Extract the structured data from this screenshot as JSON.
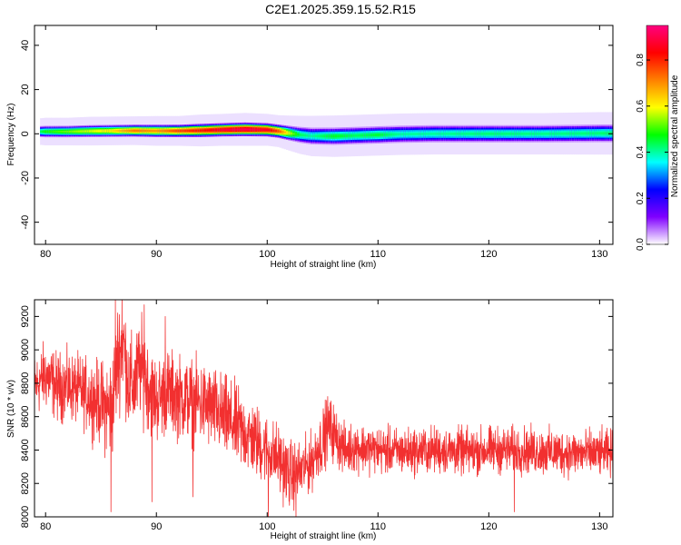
{
  "title": "C2E1.2025.359.15.52.R15",
  "chart_data": [
    {
      "type": "heatmap",
      "xlabel": "Height of straight line (km)",
      "ylabel": "Frequency (Hz)",
      "xlim": [
        79,
        131.2
      ],
      "ylim": [
        -50,
        49
      ],
      "xticks": [
        80,
        90,
        100,
        110,
        120,
        130
      ],
      "yticks": [
        -40,
        -20,
        0,
        20,
        40
      ],
      "colorbar": {
        "label": "Normalized spectral amplitude",
        "range": [
          0.0,
          0.95
        ],
        "ticks": [
          "0.0",
          "0.2",
          "0.4",
          "0.6",
          "0.8"
        ],
        "tick_values": [
          0.0,
          0.2,
          0.4,
          0.6,
          0.8
        ],
        "colormap": [
          "#ffffff",
          "#8000ff",
          "#0000ff",
          "#00ffff",
          "#00ff00",
          "#ffff00",
          "#ff8000",
          "#ff0000",
          "#ff0080"
        ]
      },
      "ridge": {
        "height_km": [
          79.5,
          80,
          82,
          84,
          86,
          88,
          90,
          92,
          94,
          96,
          98,
          100,
          101,
          102,
          103,
          104,
          106,
          108,
          110,
          112,
          115,
          120,
          125,
          130,
          131.2
        ],
        "center_hz": [
          1,
          1,
          1,
          1.2,
          1.3,
          1.4,
          1.3,
          1.3,
          1.5,
          1.8,
          2.0,
          1.8,
          1.2,
          0.3,
          -0.5,
          -1.0,
          -1.1,
          -0.8,
          -0.5,
          -0.2,
          0,
          0,
          0,
          0.2,
          0.2
        ],
        "half_width_hz": [
          2.5,
          2.6,
          2.6,
          2.7,
          2.7,
          2.7,
          2.8,
          2.8,
          3.0,
          3.0,
          3.1,
          3.0,
          3.0,
          3.3,
          3.6,
          3.8,
          3.9,
          3.9,
          3.9,
          3.9,
          3.9,
          3.9,
          3.9,
          4.0,
          4.0
        ],
        "peak_amplitude": [
          0.45,
          0.5,
          0.55,
          0.6,
          0.65,
          0.75,
          0.72,
          0.8,
          0.85,
          0.92,
          0.95,
          0.9,
          0.8,
          0.6,
          0.45,
          0.42,
          0.48,
          0.45,
          0.47,
          0.42,
          0.42,
          0.44,
          0.43,
          0.44,
          0.45
        ]
      }
    },
    {
      "type": "line",
      "xlabel": "Height of straight line (km)",
      "ylabel": "SNR (10 * v/v)",
      "xlim": [
        79,
        131.2
      ],
      "ylim": [
        8000,
        9300
      ],
      "xticks": [
        80,
        90,
        100,
        110,
        120,
        130
      ],
      "yticks": [
        8000,
        8200,
        8400,
        8600,
        8800,
        9000,
        9200
      ],
      "series": [
        {
          "color": "#f23030",
          "x": [
            79,
            80,
            81,
            82,
            83,
            84,
            85,
            85.5,
            86,
            86.5,
            87,
            87.5,
            88,
            88.5,
            89,
            89.5,
            90,
            91,
            92,
            93,
            94,
            95,
            96,
            97,
            98,
            99,
            100,
            101,
            102,
            103,
            104,
            104.5,
            105,
            105.5,
            106,
            107,
            108,
            110,
            112,
            115,
            118,
            120,
            122,
            125,
            128,
            130,
            131.2
          ],
          "y": [
            8780,
            8850,
            8780,
            8780,
            8760,
            8720,
            8680,
            8650,
            8650,
            8950,
            9050,
            8800,
            8780,
            8900,
            8850,
            8750,
            8700,
            8750,
            8720,
            8700,
            8680,
            8650,
            8600,
            8550,
            8500,
            8450,
            8400,
            8350,
            8250,
            8270,
            8330,
            8400,
            8450,
            8550,
            8500,
            8400,
            8420,
            8400,
            8390,
            8400,
            8390,
            8400,
            8400,
            8390,
            8380,
            8380,
            8380
          ],
          "noise_amplitude": [
            130,
            140,
            140,
            140,
            140,
            150,
            170,
            200,
            220,
            220,
            220,
            200,
            200,
            200,
            200,
            180,
            170,
            170,
            170,
            170,
            170,
            170,
            170,
            170,
            160,
            150,
            140,
            140,
            140,
            120,
            120,
            120,
            130,
            130,
            120,
            100,
            100,
            95,
            95,
            95,
            95,
            95,
            95,
            95,
            95,
            95,
            95
          ],
          "spikes": [
            {
              "x": 85.9,
              "y": 8030
            },
            {
              "x": 86.3,
              "y": 9300
            },
            {
              "x": 86.9,
              "y": 9320
            },
            {
              "x": 88.9,
              "y": 9270
            },
            {
              "x": 89.6,
              "y": 8090
            },
            {
              "x": 90.8,
              "y": 9200
            },
            {
              "x": 93.3,
              "y": 8120
            },
            {
              "x": 100.1,
              "y": 7980
            },
            {
              "x": 102.6,
              "y": 8000
            },
            {
              "x": 122.3,
              "y": 8030
            }
          ]
        }
      ]
    }
  ]
}
